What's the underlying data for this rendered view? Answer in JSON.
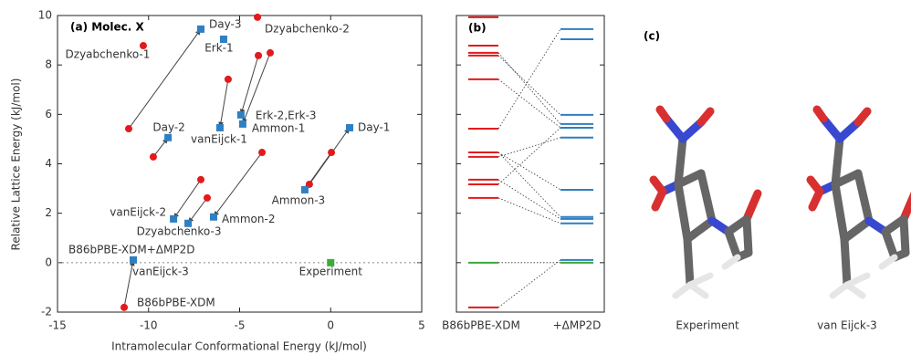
{
  "chart_data": [
    {
      "type": "scatter",
      "title": "(a) Molec. X",
      "xlabel": "Intramolecular Conformational Energy (kJ/mol)",
      "ylabel": "Relative Lattice Energy (kJ/mol)",
      "xlim": [
        -15,
        5
      ],
      "ylim": [
        -2,
        10
      ],
      "xticks": [
        -15,
        -10,
        -5,
        0,
        5
      ],
      "yticks": [
        -2,
        0,
        2,
        4,
        6,
        8,
        10
      ],
      "labels": [
        "Dzyabchenko-1",
        "Dzyabchenko-2",
        "Erk-1",
        "Day-3",
        "Day-2",
        "vanEijck-1",
        "Erk-2,Erk-3",
        "Ammon-1",
        "Day-1",
        "Ammon-3",
        "vanEijck-2",
        "Dzyabchenko-3",
        "Ammon-2",
        "vanEijck-3"
      ],
      "series": [
        {
          "name": "B86bPBE-XDM",
          "color": "#e31a1c",
          "x": [
            -10.29,
            -4.02,
            null,
            -11.09,
            -9.74,
            -5.63,
            -3.97,
            -3.32,
            -1.17,
            0.04,
            -7.13,
            -6.78,
            -3.77,
            -11.34
          ],
          "values": [
            8.78,
            9.93,
            null,
            5.42,
            4.28,
            7.42,
            8.38,
            8.49,
            3.17,
            4.46,
            3.36,
            2.62,
            4.46,
            -1.81
          ]
        },
        {
          "name": "B86bPBE-XDM+ΔMP2D",
          "color": "#2f7fc1",
          "x": [
            null,
            null,
            -5.88,
            -7.13,
            -8.93,
            -6.08,
            -4.93,
            -4.83,
            1.04,
            -1.42,
            -8.63,
            -7.83,
            -6.43,
            -10.84
          ],
          "values": [
            null,
            null,
            9.04,
            9.45,
            5.06,
            5.46,
            5.98,
            5.61,
            5.46,
            2.95,
            1.77,
            1.59,
            1.85,
            0.11
          ]
        },
        {
          "name": "Experiment",
          "color": "#3caa3c",
          "x": [
            0
          ],
          "values": [
            0
          ]
        }
      ]
    },
    {
      "type": "levels",
      "title": "(b)",
      "categories": [
        "B86bPBE-XDM",
        "+ΔMP2D"
      ],
      "ylim": [
        -2,
        10
      ]
    }
  ],
  "panel_c": {
    "title": "(c)",
    "captions": [
      "Experiment",
      "van Eijck-3"
    ]
  }
}
